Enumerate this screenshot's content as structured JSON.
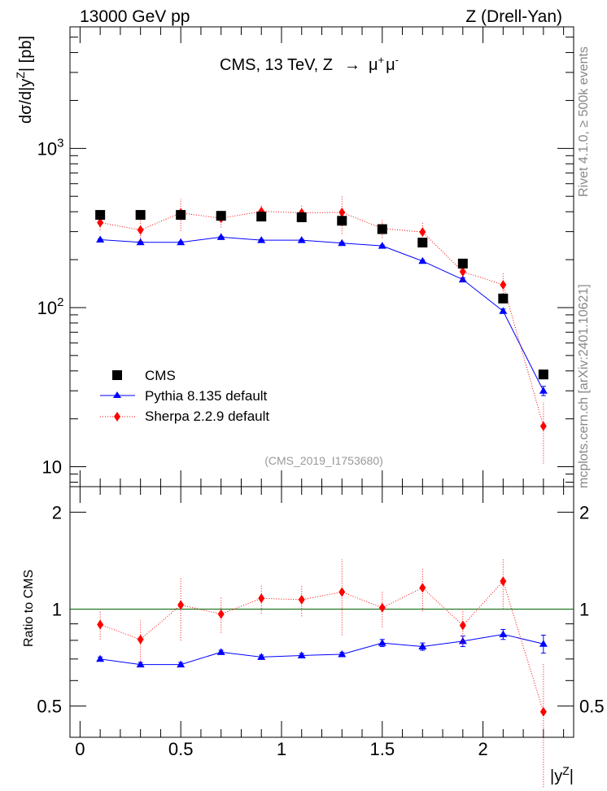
{
  "header": {
    "left": "13000 GeV pp",
    "right": "Z (Drell-Yan)"
  },
  "side_labels": {
    "rivet": "Rivet 4.1.0, ≥ 500k events",
    "mcplots": "mcplots.cern.ch [arXiv:2401.10621]"
  },
  "analysis_id": "(CMS_2019_I1753680)",
  "chart_data": [
    {
      "type": "scatter",
      "panel": "main",
      "title": "CMS, 13 TeV, Z → μ⁺μ⁻",
      "title_parts": {
        "main": "CMS, 13 TeV, Z",
        "arrow": "→",
        "mu": "μ",
        "plus": "+",
        "minus": "-"
      },
      "ylabel": "dσ/d|y^Z| [pb]",
      "ylabel_parts": {
        "prefix": "dσ/d|y",
        "sup": "Z",
        "suffix": "| [pb]"
      },
      "yscale": "log",
      "ylim": [
        7.5,
        5800
      ],
      "xlim": [
        -0.05,
        2.45
      ],
      "yticks": [
        {
          "value": 10,
          "label": "10",
          "sup": ""
        },
        {
          "value": 100,
          "label": "10",
          "sup": "2"
        },
        {
          "value": 1000,
          "label": "10",
          "sup": "3"
        }
      ],
      "legend_position": "lower-left",
      "x": [
        0.1,
        0.3,
        0.5,
        0.7,
        0.9,
        1.1,
        1.3,
        1.5,
        1.7,
        1.9,
        2.1,
        2.3
      ],
      "series": [
        {
          "name": "CMS",
          "marker": "square",
          "color": "#000000",
          "values": [
            382,
            382,
            382,
            377,
            373,
            369,
            351,
            311,
            256,
            189,
            114,
            38
          ],
          "err": [
            8,
            8,
            8,
            8,
            8,
            8,
            8,
            7,
            6,
            5,
            3,
            1.5
          ]
        },
        {
          "name": "Pythia 8.135 default",
          "marker": "triangle",
          "color": "#0000ff",
          "line": "solid",
          "values": [
            267,
            257,
            257,
            277,
            265,
            265,
            254,
            244,
            196,
            150,
            95,
            30
          ],
          "err": [
            3,
            3,
            3,
            3,
            3,
            3,
            3,
            3,
            3,
            4,
            3,
            2
          ]
        },
        {
          "name": "Sherpa 2.2.9 default",
          "marker": "diamond",
          "color": "#ff0000",
          "line": "dotted",
          "values": [
            342,
            307,
            393,
            364,
            402,
            394,
            396,
            314,
            298,
            168,
            139,
            18
          ],
          "err": [
            35,
            45,
            90,
            45,
            40,
            45,
            105,
            40,
            45,
            20,
            25,
            7.5
          ]
        }
      ]
    },
    {
      "type": "scatter",
      "panel": "ratio",
      "ylabel": "Ratio to CMS",
      "xlabel": "|y^Z|",
      "xlabel_parts": {
        "prefix": "|y",
        "sup": "Z",
        "suffix": "|"
      },
      "xlim": [
        -0.05,
        2.45
      ],
      "ylim": [
        0.4,
        2.4
      ],
      "yscale": "log",
      "xticks": [
        {
          "value": 0,
          "label": "0"
        },
        {
          "value": 0.5,
          "label": "0.5"
        },
        {
          "value": 1,
          "label": "1"
        },
        {
          "value": 1.5,
          "label": "1.5"
        },
        {
          "value": 2,
          "label": "2"
        }
      ],
      "yticks": [
        {
          "value": 0.5,
          "label": "0.5"
        },
        {
          "value": 1,
          "label": "1"
        },
        {
          "value": 2,
          "label": "2"
        }
      ],
      "reference_line": 1,
      "x": [
        0.1,
        0.3,
        0.5,
        0.7,
        0.9,
        1.1,
        1.3,
        1.5,
        1.7,
        1.9,
        2.1,
        2.3
      ],
      "series": [
        {
          "name": "Pythia 8.135 default",
          "color": "#0000ff",
          "values": [
            0.7,
            0.673,
            0.673,
            0.735,
            0.71,
            0.718,
            0.724,
            0.785,
            0.765,
            0.795,
            0.835,
            0.78
          ],
          "err": [
            0.01,
            0.01,
            0.01,
            0.01,
            0.01,
            0.01,
            0.01,
            0.02,
            0.02,
            0.03,
            0.03,
            0.05
          ]
        },
        {
          "name": "Sherpa 2.2.9 default",
          "color": "#ff0000",
          "values": [
            0.895,
            0.805,
            1.03,
            0.965,
            1.08,
            1.07,
            1.13,
            1.01,
            1.165,
            0.89,
            1.22,
            0.48
          ],
          "err": [
            0.09,
            0.12,
            0.23,
            0.12,
            0.11,
            0.12,
            0.3,
            0.13,
            0.18,
            0.11,
            0.22,
            0.2
          ]
        }
      ]
    }
  ]
}
